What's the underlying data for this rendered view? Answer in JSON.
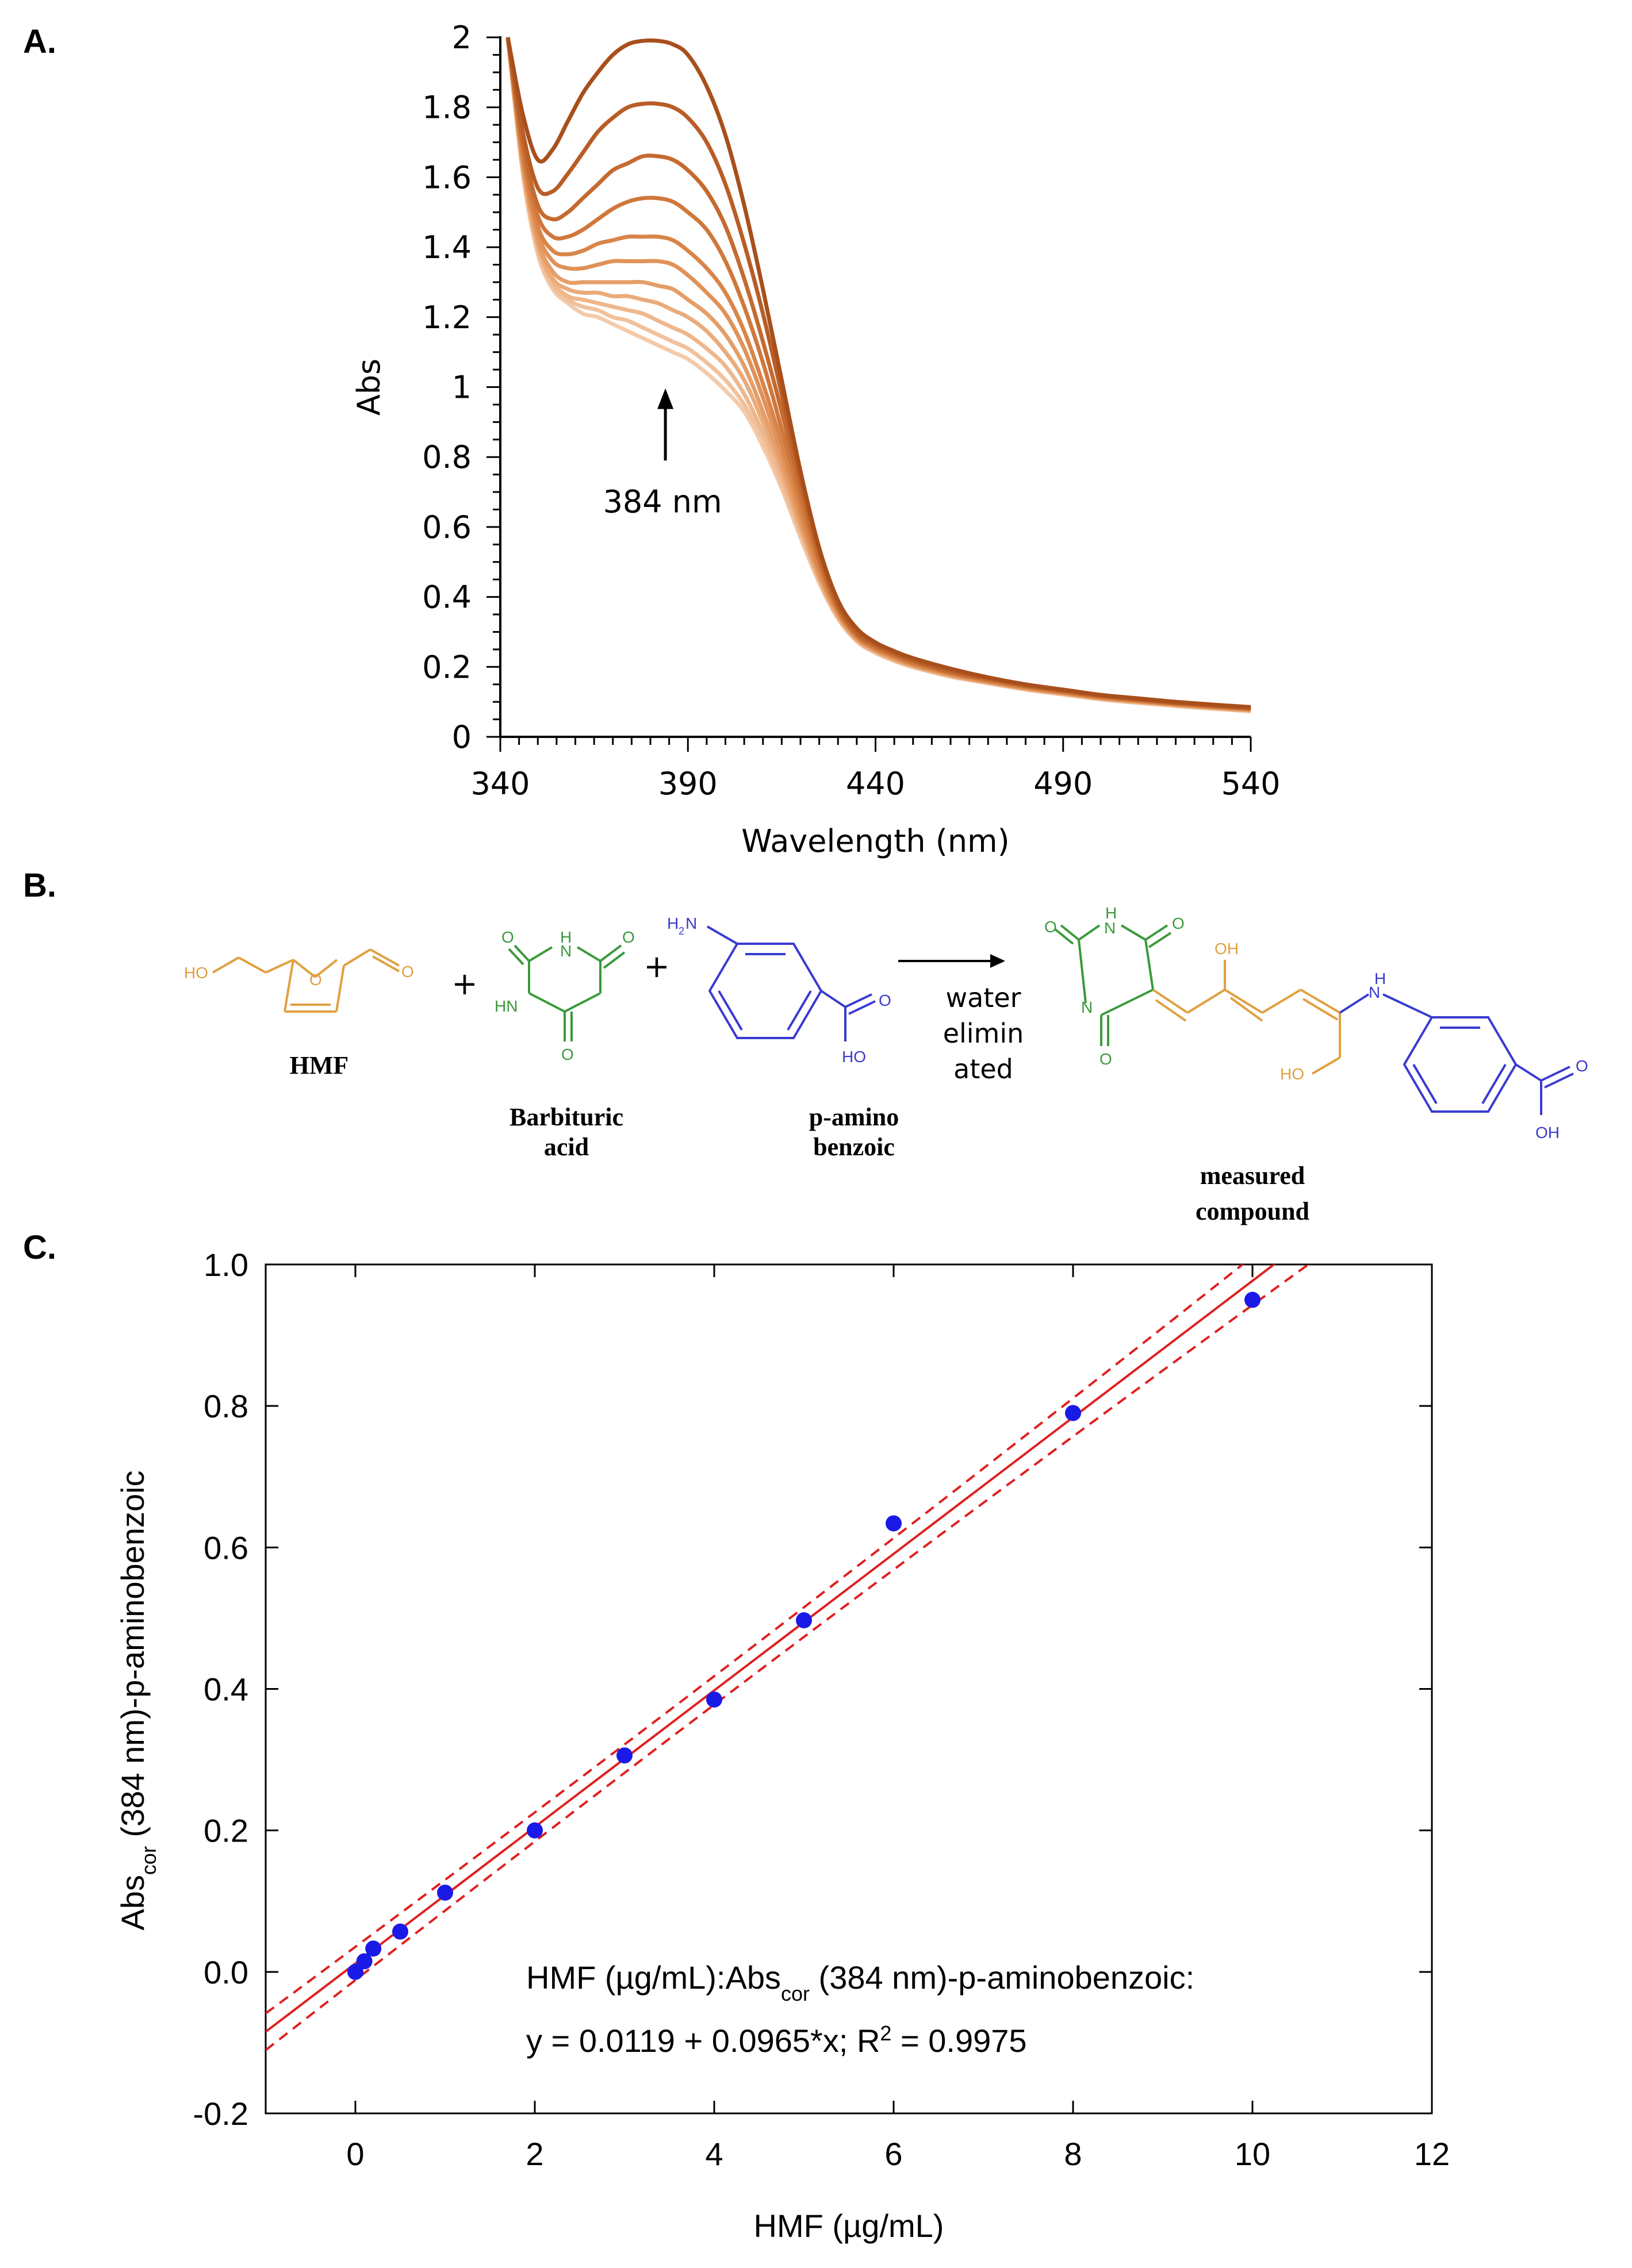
{
  "panels": {
    "a": "A.",
    "b": "B.",
    "c": "C."
  },
  "chart_data": [
    {
      "type": "line",
      "title": "",
      "xlabel": "Wavelength (nm)",
      "ylabel": "Abs",
      "xlim": [
        340,
        540
      ],
      "ylim": [
        0,
        2
      ],
      "x_ticks": [
        340,
        390,
        440,
        490,
        540
      ],
      "x_tick_labels": [
        "340",
        "390",
        "440",
        "490",
        "540"
      ],
      "y_ticks": [
        0,
        0.2,
        0.4,
        0.6,
        0.8,
        1,
        1.2,
        1.4,
        1.6,
        1.8,
        2
      ],
      "y_tick_labels": [
        "0",
        "0.2",
        "0.4",
        "0.6",
        "0.8",
        "1",
        "1.2",
        "1.4",
        "1.6",
        "1.8",
        "2"
      ],
      "annotation": {
        "text": "384 nm",
        "x": 384,
        "y_from": 0.79,
        "y_to": 0.98
      },
      "x": [
        342,
        346,
        350,
        354,
        358,
        362,
        366,
        370,
        374,
        378,
        382,
        386,
        390,
        395,
        400,
        405,
        410,
        415,
        420,
        425,
        430,
        435,
        440,
        445,
        450,
        460,
        470,
        480,
        490,
        500,
        510,
        520,
        530,
        540
      ],
      "series": [
        {
          "name": "s1",
          "color": "#a84f1c",
          "values": [
            2.0,
            1.78,
            1.65,
            1.68,
            1.76,
            1.84,
            1.9,
            1.95,
            1.98,
            1.99,
            1.99,
            1.98,
            1.95,
            1.86,
            1.72,
            1.52,
            1.28,
            1.02,
            0.76,
            0.54,
            0.39,
            0.31,
            0.27,
            0.245,
            0.225,
            0.195,
            0.17,
            0.15,
            0.135,
            0.12,
            0.11,
            0.1,
            0.092,
            0.085
          ]
        },
        {
          "name": "s2",
          "color": "#b85d26",
          "values": [
            2.0,
            1.73,
            1.57,
            1.56,
            1.61,
            1.67,
            1.73,
            1.77,
            1.8,
            1.81,
            1.81,
            1.8,
            1.77,
            1.7,
            1.58,
            1.41,
            1.21,
            0.98,
            0.74,
            0.53,
            0.38,
            0.3,
            0.265,
            0.24,
            0.22,
            0.19,
            0.168,
            0.148,
            0.133,
            0.118,
            0.108,
            0.098,
            0.09,
            0.083
          ]
        },
        {
          "name": "s3",
          "color": "#c56a30",
          "values": [
            2.0,
            1.7,
            1.52,
            1.48,
            1.5,
            1.54,
            1.58,
            1.62,
            1.64,
            1.66,
            1.66,
            1.65,
            1.62,
            1.56,
            1.46,
            1.31,
            1.13,
            0.93,
            0.71,
            0.51,
            0.37,
            0.295,
            0.26,
            0.236,
            0.216,
            0.186,
            0.165,
            0.146,
            0.131,
            0.116,
            0.106,
            0.096,
            0.088,
            0.081
          ]
        },
        {
          "name": "s4",
          "color": "#d0783c",
          "values": [
            2.0,
            1.68,
            1.49,
            1.43,
            1.43,
            1.45,
            1.48,
            1.51,
            1.53,
            1.54,
            1.54,
            1.53,
            1.5,
            1.45,
            1.36,
            1.23,
            1.07,
            0.88,
            0.68,
            0.5,
            0.365,
            0.29,
            0.255,
            0.232,
            0.212,
            0.183,
            0.162,
            0.144,
            0.129,
            0.115,
            0.105,
            0.095,
            0.087,
            0.08
          ]
        },
        {
          "name": "s5",
          "color": "#d9854a",
          "values": [
            2.0,
            1.66,
            1.46,
            1.39,
            1.38,
            1.39,
            1.41,
            1.42,
            1.43,
            1.43,
            1.43,
            1.42,
            1.39,
            1.34,
            1.27,
            1.16,
            1.01,
            0.84,
            0.65,
            0.48,
            0.36,
            0.287,
            0.252,
            0.229,
            0.209,
            0.181,
            0.16,
            0.142,
            0.127,
            0.113,
            0.103,
            0.094,
            0.086,
            0.079
          ]
        },
        {
          "name": "s6",
          "color": "#e09258",
          "values": [
            2.0,
            1.65,
            1.44,
            1.36,
            1.34,
            1.34,
            1.35,
            1.36,
            1.36,
            1.36,
            1.36,
            1.35,
            1.32,
            1.27,
            1.21,
            1.11,
            0.97,
            0.81,
            0.63,
            0.47,
            0.355,
            0.284,
            0.25,
            0.227,
            0.207,
            0.179,
            0.158,
            0.14,
            0.126,
            0.112,
            0.102,
            0.093,
            0.085,
            0.078
          ]
        },
        {
          "name": "s7",
          "color": "#e59e68",
          "values": [
            2.0,
            1.64,
            1.42,
            1.33,
            1.3,
            1.3,
            1.3,
            1.3,
            1.3,
            1.3,
            1.29,
            1.28,
            1.25,
            1.21,
            1.15,
            1.06,
            0.93,
            0.78,
            0.61,
            0.46,
            0.35,
            0.281,
            0.247,
            0.224,
            0.205,
            0.177,
            0.157,
            0.139,
            0.125,
            0.111,
            0.101,
            0.092,
            0.084,
            0.077
          ]
        },
        {
          "name": "s8",
          "color": "#eaab7a",
          "values": [
            2.0,
            1.63,
            1.41,
            1.31,
            1.28,
            1.27,
            1.27,
            1.26,
            1.26,
            1.25,
            1.24,
            1.22,
            1.2,
            1.16,
            1.1,
            1.02,
            0.9,
            0.76,
            0.6,
            0.455,
            0.346,
            0.279,
            0.245,
            0.222,
            0.203,
            0.176,
            0.156,
            0.138,
            0.124,
            0.11,
            0.1,
            0.091,
            0.083,
            0.076
          ]
        },
        {
          "name": "s9",
          "color": "#eeb78c",
          "values": [
            2.0,
            1.62,
            1.4,
            1.3,
            1.26,
            1.25,
            1.24,
            1.23,
            1.22,
            1.21,
            1.19,
            1.17,
            1.15,
            1.11,
            1.06,
            0.98,
            0.87,
            0.74,
            0.59,
            0.45,
            0.343,
            0.277,
            0.243,
            0.22,
            0.201,
            0.174,
            0.155,
            0.137,
            0.123,
            0.109,
            0.099,
            0.09,
            0.082,
            0.075
          ]
        },
        {
          "name": "s10",
          "color": "#f1c19c",
          "values": [
            2.0,
            1.62,
            1.39,
            1.29,
            1.25,
            1.23,
            1.22,
            1.2,
            1.19,
            1.17,
            1.15,
            1.13,
            1.11,
            1.07,
            1.02,
            0.95,
            0.85,
            0.72,
            0.58,
            0.445,
            0.34,
            0.275,
            0.241,
            0.218,
            0.2,
            0.173,
            0.154,
            0.136,
            0.122,
            0.108,
            0.098,
            0.089,
            0.081,
            0.074
          ]
        },
        {
          "name": "s11",
          "color": "#f3cbab",
          "values": [
            2.0,
            1.61,
            1.38,
            1.28,
            1.24,
            1.21,
            1.2,
            1.18,
            1.16,
            1.14,
            1.12,
            1.1,
            1.08,
            1.04,
            0.99,
            0.93,
            0.83,
            0.71,
            0.57,
            0.44,
            0.338,
            0.273,
            0.24,
            0.217,
            0.199,
            0.172,
            0.153,
            0.135,
            0.121,
            0.107,
            0.097,
            0.088,
            0.08,
            0.073
          ]
        }
      ]
    },
    {
      "type": "scatter",
      "title": "",
      "xlabel": "HMF (µg/mL)",
      "ylabel_main": "Abs",
      "ylabel_sub": "cor",
      "ylabel_rest": " (384 nm)-p-aminobenzoic",
      "xlim": [
        -1,
        12
      ],
      "ylim": [
        -0.2,
        1.0
      ],
      "x_ticks": [
        0,
        2,
        4,
        6,
        8,
        10,
        12
      ],
      "x_tick_labels": [
        "0",
        "2",
        "4",
        "6",
        "8",
        "10",
        "12"
      ],
      "y_ticks": [
        -0.2,
        0.0,
        0.2,
        0.4,
        0.6,
        0.8,
        1.0
      ],
      "y_tick_labels": [
        "-0.2",
        "0.0",
        "0.2",
        "0.4",
        "0.6",
        "0.8",
        "1.0"
      ],
      "points": {
        "x": [
          0,
          0.1,
          0.2,
          0.5,
          1,
          2,
          3,
          4,
          5,
          6,
          8,
          10
        ],
        "y": [
          0.0,
          0.015,
          0.033,
          0.057,
          0.112,
          0.2,
          0.306,
          0.385,
          0.497,
          0.634,
          0.79,
          0.95
        ]
      },
      "fit": {
        "intercept": 0.0119,
        "slope": 0.0965,
        "r2": 0.9975,
        "confidence_halfwidth_ends": 0.044,
        "confidence_halfwidth_center": 0.02
      },
      "equation_line1_pre": "HMF (µg/mL):Abs",
      "equation_line1_sub": "cor",
      "equation_line1_post": " (384 nm)-p-aminobenzoic:",
      "equation_line2_pre": "y = 0.0119 + 0.0965*x; R",
      "equation_line2_sup": "2",
      "equation_line2_post": " = 0.9975"
    }
  ],
  "scheme": {
    "hmf_label": "HMF",
    "barbituric_label_1": "Barbituric",
    "barbituric_label_2": "acid",
    "paba_label_1": "p-amino",
    "paba_label_2": "benzoic",
    "product_label_1": "measured",
    "product_label_2": "compound",
    "plus": "+",
    "arrow_note_1": "water",
    "arrow_note_2": "elimin",
    "arrow_note_3": "ated",
    "atoms": {
      "ho": "HO",
      "o": "O",
      "h": "H",
      "n": "N",
      "hn": "HN",
      "h2n_h": "H",
      "h2n_sub": "2",
      "h2n_n": "N",
      "oh": "OH"
    },
    "colors": {
      "hmf": "#e0a040",
      "barbituric": "#3a9a3a",
      "paba": "#3a3ad0"
    }
  }
}
